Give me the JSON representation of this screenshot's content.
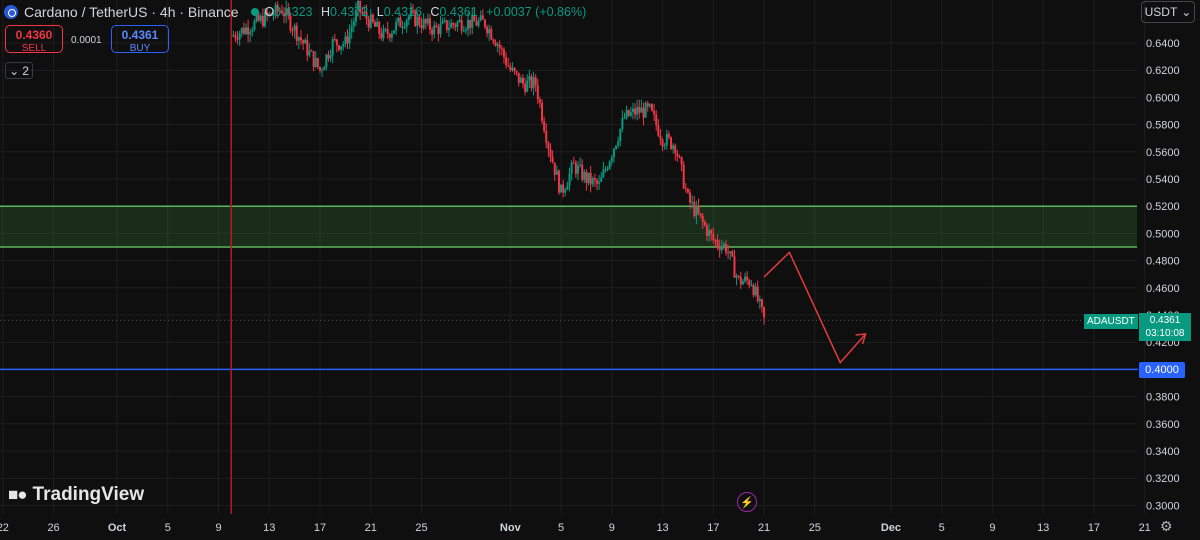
{
  "header": {
    "title": "Cardano / TetherUS · 4h · Binance",
    "ohlc": {
      "o_label": "O",
      "o": "0.4323",
      "h_label": "H",
      "h": "0.4372",
      "l_label": "L",
      "l": "0.4316",
      "c_label": "C",
      "c": "0.4361",
      "change": "+0.0037 (+0.86%)"
    }
  },
  "trade": {
    "sell_price": "0.4360",
    "sell_label": "SELL",
    "spread": "0.0001",
    "buy_price": "0.4361",
    "buy_label": "BUY"
  },
  "indicators_toggle": {
    "icon": "chevron-down-icon",
    "count": "2"
  },
  "currency_button": {
    "label": "USDT",
    "icon": "chevron-down-icon"
  },
  "watermark": "TradingView",
  "price_label": {
    "symbol": "ADAUSDT",
    "price": "0.4361",
    "countdown": "03:10:08"
  },
  "level_label": "0.4000",
  "colors": {
    "up": "#089981",
    "down": "#f23645",
    "zone": "#5cb85c",
    "level": "#2962ff",
    "annotation": "#e03b3b",
    "background": "#0f0f0f"
  },
  "chart_data": {
    "type": "candlestick",
    "symbol": "ADAUSDT",
    "interval": "4h",
    "y_ticks": [
      "0.6400",
      "0.6200",
      "0.6000",
      "0.5800",
      "0.5600",
      "0.5400",
      "0.5200",
      "0.5000",
      "0.4800",
      "0.4600",
      "0.4400",
      "0.4200",
      "0.4000",
      "0.3800",
      "0.3600",
      "0.3400",
      "0.3200",
      "0.3000"
    ],
    "ylim": [
      0.295,
      0.66
    ],
    "x_ticks": [
      "22",
      "26",
      "Oct",
      "5",
      "9",
      "13",
      "17",
      "21",
      "25",
      "Nov",
      "5",
      "9",
      "13",
      "17",
      "21",
      "25",
      "Dec",
      "5",
      "9",
      "13",
      "17",
      "21"
    ],
    "x_tick_dates": [
      "2024-09-22",
      "2024-09-26",
      "2024-10-01",
      "2024-10-05",
      "2024-10-09",
      "2024-10-13",
      "2024-10-17",
      "2024-10-21",
      "2024-10-25",
      "2024-11-01",
      "2024-11-05",
      "2024-11-09",
      "2024-11-13",
      "2024-11-17",
      "2024-11-21",
      "2024-11-25",
      "2024-12-01",
      "2024-12-05",
      "2024-12-09",
      "2024-12-13",
      "2024-12-17",
      "2024-12-21"
    ],
    "closes_path": [
      [
        "2024-10-10",
        0.645
      ],
      [
        "2024-10-12",
        0.655
      ],
      [
        "2024-10-14",
        0.665
      ],
      [
        "2024-10-16",
        0.635
      ],
      [
        "2024-10-17",
        0.62
      ],
      [
        "2024-10-18",
        0.64
      ],
      [
        "2024-10-19",
        0.64
      ],
      [
        "2024-10-20",
        0.665
      ],
      [
        "2024-10-22",
        0.645
      ],
      [
        "2024-10-24",
        0.66
      ],
      [
        "2024-10-26",
        0.65
      ],
      [
        "2024-10-28",
        0.655
      ],
      [
        "2024-10-30",
        0.655
      ],
      [
        "2024-10-31",
        0.64
      ],
      [
        "2024-11-01",
        0.62
      ],
      [
        "2024-11-02",
        0.61
      ],
      [
        "2024-11-03",
        0.61
      ],
      [
        "2024-11-04",
        0.565
      ],
      [
        "2024-11-05",
        0.53
      ],
      [
        "2024-11-06",
        0.55
      ],
      [
        "2024-11-07",
        0.54
      ],
      [
        "2024-11-08",
        0.535
      ],
      [
        "2024-11-09",
        0.56
      ],
      [
        "2024-11-10",
        0.585
      ],
      [
        "2024-11-11",
        0.59
      ],
      [
        "2024-11-12",
        0.59
      ],
      [
        "2024-11-13",
        0.57
      ],
      [
        "2024-11-14",
        0.565
      ],
      [
        "2024-11-15",
        0.525
      ],
      [
        "2024-11-16",
        0.51
      ],
      [
        "2024-11-17",
        0.495
      ],
      [
        "2024-11-18",
        0.49
      ],
      [
        "2024-11-19",
        0.465
      ],
      [
        "2024-11-20",
        0.465
      ],
      [
        "2024-11-21",
        0.4361
      ]
    ],
    "zones": [
      {
        "from": 0.49,
        "to": 0.52
      }
    ],
    "levels": [
      0.4
    ],
    "markers": {
      "vertical_line_date": "2024-10-10",
      "current_price": 0.4361
    },
    "projection": [
      [
        "2024-11-21",
        0.468
      ],
      [
        "2024-11-23",
        0.486
      ],
      [
        "2024-11-27",
        0.405
      ],
      [
        "2024-11-29",
        0.426
      ]
    ],
    "grid": true
  }
}
